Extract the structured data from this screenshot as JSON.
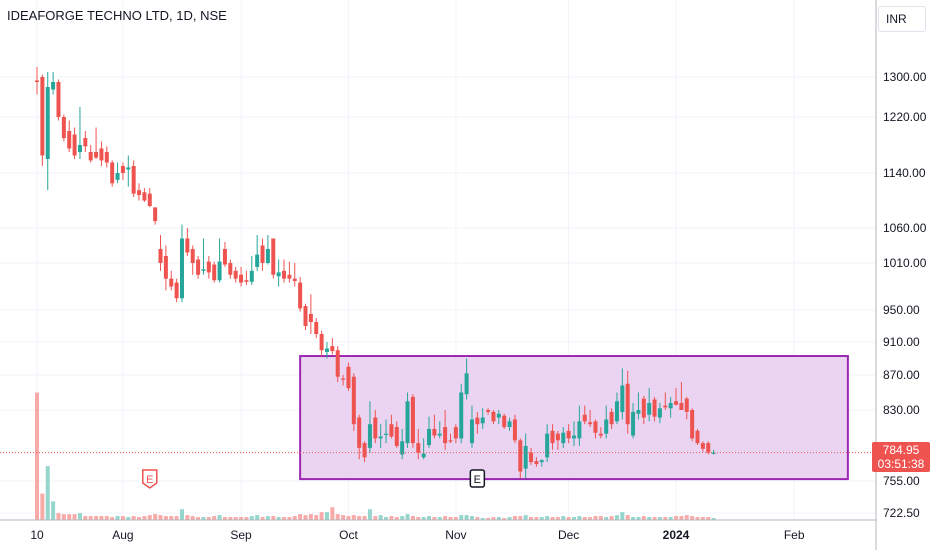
{
  "header": {
    "title": "IDEAFORGE TECHNO LTD, 1D, NSE",
    "currency": "INR"
  },
  "colors": {
    "up": "#26a69a",
    "down": "#ef5350",
    "vol_up": "#94d5cc",
    "vol_down": "#f8aaa8",
    "box_fill": "#e8cdee",
    "box_border": "#9c27b0"
  },
  "price_tag": {
    "price": "784.95",
    "countdown": "03:51:38"
  },
  "chart_data": {
    "type": "candlestick",
    "title": "IDEAFORGE TECHNO LTD, 1D, NSE",
    "y_ticks": [
      "1300.00",
      "1220.00",
      "1140.00",
      "1060.00",
      "1010.00",
      "950.00",
      "910.00",
      "870.00",
      "830.00",
      "755.00",
      "722.50"
    ],
    "y_tick_values": [
      1300,
      1220,
      1140,
      1060,
      1010,
      950,
      910,
      870,
      830,
      755,
      722.5
    ],
    "x_ticks": [
      "10",
      "Aug",
      "Sep",
      "Oct",
      "Nov",
      "Dec",
      "2024",
      "Feb"
    ],
    "x_tick_bar_index": [
      0,
      16,
      38,
      58,
      78,
      99,
      119,
      141
    ],
    "last_price": 784.95,
    "range_box": {
      "from_bar": 49,
      "to_bar": 151,
      "high": 893,
      "low": 757
    },
    "events": [
      {
        "label": "E",
        "bar": 21,
        "type": "earnings-past"
      },
      {
        "label": "E",
        "bar": 82,
        "type": "earnings"
      }
    ],
    "ohlc": [
      [
        1293,
        1320,
        1265,
        1290
      ],
      [
        1300,
        1305,
        1150,
        1165
      ],
      [
        1160,
        1310,
        1115,
        1280
      ],
      [
        1275,
        1310,
        1265,
        1290
      ],
      [
        1290,
        1295,
        1215,
        1220
      ],
      [
        1220,
        1225,
        1185,
        1190
      ],
      [
        1200,
        1215,
        1170,
        1175
      ],
      [
        1195,
        1205,
        1160,
        1165
      ],
      [
        1170,
        1240,
        1160,
        1180
      ],
      [
        1190,
        1200,
        1170,
        1178
      ],
      [
        1170,
        1180,
        1155,
        1158
      ],
      [
        1170,
        1205,
        1160,
        1162
      ],
      [
        1175,
        1185,
        1150,
        1158
      ],
      [
        1170,
        1178,
        1148,
        1155
      ],
      [
        1155,
        1158,
        1120,
        1125
      ],
      [
        1130,
        1155,
        1125,
        1140
      ],
      [
        1150,
        1155,
        1130,
        1140
      ],
      [
        1145,
        1165,
        1120,
        1148
      ],
      [
        1150,
        1158,
        1105,
        1110
      ],
      [
        1115,
        1125,
        1100,
        1108
      ],
      [
        1112,
        1118,
        1098,
        1100
      ],
      [
        1110,
        1118,
        1090,
        1092
      ],
      [
        1090,
        1090,
        1065,
        1070
      ],
      [
        1030,
        1050,
        1000,
        1010
      ],
      [
        1020,
        1035,
        975,
        990
      ],
      [
        990,
        1000,
        975,
        980
      ],
      [
        985,
        990,
        960,
        965
      ],
      [
        965,
        1065,
        960,
        1045
      ],
      [
        1045,
        1060,
        1020,
        1025
      ],
      [
        1030,
        1035,
        995,
        1010
      ],
      [
        1015,
        1020,
        990,
        995
      ],
      [
        1000,
        1045,
        995,
        1002
      ],
      [
        1012,
        1020,
        990,
        998
      ],
      [
        1008,
        1012,
        985,
        988
      ],
      [
        988,
        1045,
        985,
        1012
      ],
      [
        1030,
        1040,
        1005,
        1008
      ],
      [
        1010,
        1015,
        990,
        995
      ],
      [
        1000,
        1005,
        985,
        990
      ],
      [
        995,
        1005,
        980,
        985
      ],
      [
        988,
        1000,
        982,
        986
      ],
      [
        986,
        1020,
        982,
        1000
      ],
      [
        1005,
        1050,
        1000,
        1022
      ],
      [
        1035,
        1045,
        1000,
        1010
      ],
      [
        1010,
        1050,
        1008,
        1030
      ],
      [
        1045,
        1045,
        990,
        995
      ],
      [
        993,
        1015,
        980,
        998
      ],
      [
        1000,
        1015,
        985,
        990
      ],
      [
        995,
        1012,
        985,
        990
      ],
      [
        990,
        1010,
        980,
        987
      ],
      [
        985,
        992,
        948,
        952
      ],
      [
        955,
        958,
        925,
        930
      ],
      [
        945,
        970,
        920,
        935
      ],
      [
        935,
        940,
        915,
        920
      ],
      [
        920,
        924,
        893,
        900
      ],
      [
        898,
        910,
        890,
        902
      ],
      [
        905,
        915,
        895,
        899
      ],
      [
        900,
        905,
        862,
        868
      ],
      [
        866,
        870,
        858,
        865
      ],
      [
        880,
        885,
        852,
        855
      ],
      [
        868,
        872,
        808,
        815
      ],
      [
        822,
        825,
        778,
        790
      ],
      [
        795,
        797,
        775,
        780
      ],
      [
        790,
        840,
        785,
        815
      ],
      [
        822,
        830,
        795,
        800
      ],
      [
        800,
        815,
        790,
        802
      ],
      [
        805,
        820,
        795,
        805
      ],
      [
        815,
        825,
        800,
        802
      ],
      [
        812,
        818,
        790,
        792
      ],
      [
        783,
        810,
        778,
        797
      ],
      [
        795,
        850,
        790,
        840
      ],
      [
        845,
        848,
        790,
        795
      ],
      [
        795,
        810,
        778,
        785
      ],
      [
        780,
        800,
        778,
        784
      ],
      [
        793,
        823,
        790,
        810
      ],
      [
        810,
        825,
        800,
        803
      ],
      [
        803,
        818,
        800,
        805
      ],
      [
        812,
        830,
        788,
        795
      ],
      [
        798,
        805,
        795,
        797
      ],
      [
        812,
        815,
        795,
        800
      ],
      [
        800,
        860,
        795,
        850
      ],
      [
        848,
        890,
        842,
        872
      ],
      [
        795,
        835,
        790,
        820
      ],
      [
        822,
        828,
        805,
        815
      ],
      [
        816,
        832,
        810,
        822
      ],
      [
        830,
        832,
        825,
        828
      ],
      [
        828,
        830,
        815,
        818
      ],
      [
        822,
        830,
        815,
        826
      ],
      [
        824,
        826,
        810,
        812
      ],
      [
        812,
        822,
        808,
        818
      ],
      [
        820,
        825,
        795,
        798
      ],
      [
        798,
        800,
        758,
        765
      ],
      [
        768,
        805,
        758,
        792
      ],
      [
        785,
        790,
        772,
        775
      ],
      [
        776,
        780,
        770,
        773
      ],
      [
        775,
        778,
        770,
        777
      ],
      [
        780,
        815,
        775,
        805
      ],
      [
        808,
        815,
        788,
        795
      ],
      [
        805,
        808,
        788,
        798
      ],
      [
        795,
        812,
        790,
        806
      ],
      [
        808,
        815,
        795,
        800
      ],
      [
        800,
        818,
        792,
        803
      ],
      [
        800,
        835,
        792,
        818
      ],
      [
        825,
        835,
        815,
        818
      ],
      [
        817,
        830,
        812,
        815
      ],
      [
        818,
        820,
        800,
        806
      ],
      [
        805,
        812,
        800,
        803
      ],
      [
        805,
        835,
        800,
        820
      ],
      [
        828,
        832,
        810,
        815
      ],
      [
        818,
        850,
        815,
        840
      ],
      [
        828,
        878,
        820,
        858
      ],
      [
        860,
        875,
        805,
        815
      ],
      [
        803,
        838,
        800,
        828
      ],
      [
        826,
        850,
        820,
        830
      ],
      [
        843,
        846,
        815,
        822
      ],
      [
        825,
        855,
        818,
        838
      ],
      [
        842,
        845,
        818,
        823
      ],
      [
        822,
        838,
        816,
        832
      ],
      [
        835,
        850,
        830,
        833
      ],
      [
        832,
        845,
        822,
        838
      ],
      [
        840,
        855,
        835,
        836
      ],
      [
        838,
        862,
        830,
        830
      ],
      [
        843,
        845,
        820,
        828
      ],
      [
        830,
        832,
        797,
        800
      ],
      [
        808,
        810,
        793,
        795
      ],
      [
        795,
        797,
        786,
        789
      ],
      [
        795,
        797,
        783,
        785
      ],
      [
        785,
        788,
        783,
        785
      ]
    ],
    "volume": [
      130,
      27,
      55,
      19,
      7,
      6,
      6,
      6,
      7,
      4,
      4,
      4,
      4,
      4,
      3,
      4,
      4,
      3,
      4,
      3,
      4,
      5,
      6,
      5,
      4,
      4,
      4,
      11,
      5,
      4,
      3,
      3,
      3,
      4,
      5,
      3,
      3,
      3,
      3,
      3,
      4,
      5,
      3,
      4,
      4,
      3,
      3,
      3,
      4,
      6,
      5,
      6,
      5,
      8,
      8,
      13,
      6,
      5,
      4,
      5,
      4,
      4,
      11,
      4,
      5,
      3,
      4,
      3,
      4,
      6,
      4,
      3,
      3,
      4,
      3,
      3,
      4,
      3,
      3,
      5,
      5,
      4,
      3,
      2,
      2,
      3,
      3,
      2,
      3,
      4,
      4,
      5,
      3,
      3,
      3,
      4,
      3,
      3,
      4,
      3,
      3,
      4,
      3,
      3,
      4,
      4,
      3,
      4,
      5,
      8,
      5,
      3,
      3,
      4,
      3,
      3,
      3,
      3,
      3,
      4,
      4,
      5,
      4,
      3,
      3,
      3,
      2
    ]
  }
}
